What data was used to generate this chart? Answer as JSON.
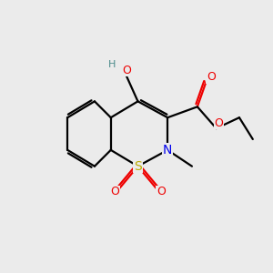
{
  "bg_color": "#ebebeb",
  "atom_colors": {
    "C": "#000000",
    "N": "#0000ee",
    "O": "#ee0000",
    "S": "#bbaa00",
    "H": "#4a8a8a"
  },
  "bond_color": "#000000",
  "bond_width": 1.6
}
